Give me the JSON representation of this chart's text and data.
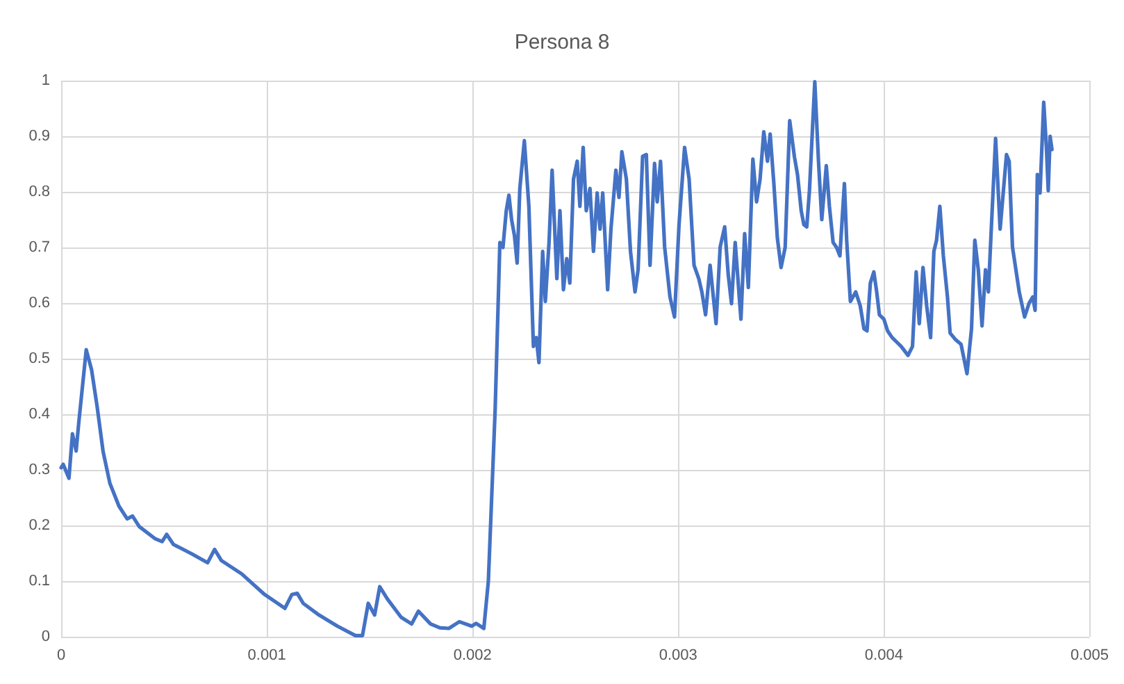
{
  "chart_data": {
    "type": "line",
    "title": "Persona 8",
    "xlim": [
      0,
      0.005
    ],
    "xticks": [
      0,
      0.001,
      0.002,
      0.003,
      0.004,
      0.005
    ],
    "ylim": [
      0,
      1
    ],
    "yticks": [
      0,
      0.1,
      0.2,
      0.3,
      0.4,
      0.5,
      0.6,
      0.7,
      0.8,
      0.9,
      1
    ],
    "grid": true,
    "marker": "none",
    "line_style": "solid",
    "series": [
      {
        "color": "#4472c4",
        "x": [
          0,
          1e-05,
          3.8e-05,
          5.5e-05,
          7.3e-05,
          8.6e-05,
          0.000122,
          0.000148,
          0.000175,
          0.000204,
          0.000237,
          0.000281,
          0.000321,
          0.000347,
          0.00038,
          0.000458,
          0.000491,
          0.000513,
          0.000546,
          0.000635,
          0.000712,
          0.000746,
          0.000779,
          0.000878,
          0.000989,
          0.001088,
          0.001122,
          0.001148,
          0.001177,
          0.001254,
          0.001343,
          0.001431,
          0.001465,
          0.001493,
          0.001524,
          0.001549,
          0.001586,
          0.001653,
          0.001704,
          0.001737,
          0.001796,
          0.001841,
          0.001885,
          0.001936,
          0.001996,
          0.002018,
          0.002055,
          0.002077,
          0.00211,
          0.002133,
          0.002148,
          0.002164,
          0.002177,
          0.00219,
          0.002204,
          0.002217,
          0.00223,
          0.002252,
          0.002274,
          0.002296,
          0.00231,
          0.002323,
          0.002341,
          0.002354,
          0.002372,
          0.002387,
          0.00241,
          0.002425,
          0.002442,
          0.002458,
          0.002473,
          0.002491,
          0.002509,
          0.002522,
          0.002538,
          0.002553,
          0.002571,
          0.002588,
          0.002606,
          0.00262,
          0.002633,
          0.002657,
          0.002673,
          0.002697,
          0.002712,
          0.002726,
          0.002748,
          0.002768,
          0.00279,
          0.002805,
          0.002827,
          0.002845,
          0.002863,
          0.002885,
          0.002898,
          0.002914,
          0.002934,
          0.00296,
          0.002982,
          0.003004,
          0.003031,
          0.003053,
          0.003077,
          0.0031,
          0.003115,
          0.003133,
          0.003155,
          0.003184,
          0.003204,
          0.003226,
          0.003243,
          0.003259,
          0.003277,
          0.003305,
          0.003323,
          0.003341,
          0.003363,
          0.003381,
          0.003398,
          0.003416,
          0.003434,
          0.003447,
          0.003465,
          0.003482,
          0.0035,
          0.00352,
          0.003542,
          0.003565,
          0.00358,
          0.003598,
          0.003611,
          0.003625,
          0.003638,
          0.003664,
          0.003682,
          0.003698,
          0.00372,
          0.003735,
          0.003753,
          0.00377,
          0.003786,
          0.003808,
          0.003819,
          0.003837,
          0.003863,
          0.003885,
          0.003903,
          0.003918,
          0.003934,
          0.003951,
          0.003965,
          0.003978,
          0.004,
          0.004018,
          0.00404,
          0.004062,
          0.004084,
          0.004117,
          0.004139,
          0.004157,
          0.004172,
          0.00419,
          0.004208,
          0.004227,
          0.004243,
          0.004256,
          0.004272,
          0.004289,
          0.004309,
          0.004322,
          0.004349,
          0.004375,
          0.004404,
          0.004426,
          0.004442,
          0.004459,
          0.004477,
          0.004494,
          0.004508,
          0.004521,
          0.004543,
          0.004565,
          0.004596,
          0.004609,
          0.004625,
          0.004658,
          0.004684,
          0.004706,
          0.004724,
          0.004735,
          0.004746,
          0.004759,
          0.004777,
          0.00479,
          0.004799,
          0.004808,
          0.004817
        ],
        "values": [
          0.304,
          0.31,
          0.285,
          0.365,
          0.334,
          0.386,
          0.516,
          0.48,
          0.414,
          0.333,
          0.276,
          0.235,
          0.212,
          0.217,
          0.198,
          0.176,
          0.171,
          0.184,
          0.166,
          0.149,
          0.133,
          0.157,
          0.137,
          0.113,
          0.076,
          0.051,
          0.076,
          0.078,
          0.06,
          0.039,
          0.019,
          0.002,
          0.002,
          0.06,
          0.039,
          0.09,
          0.068,
          0.035,
          0.023,
          0.046,
          0.023,
          0.016,
          0.015,
          0.027,
          0.019,
          0.024,
          0.015,
          0.1,
          0.408,
          0.709,
          0.7,
          0.766,
          0.794,
          0.75,
          0.721,
          0.672,
          0.806,
          0.892,
          0.774,
          0.522,
          0.538,
          0.493,
          0.693,
          0.603,
          0.709,
          0.839,
          0.644,
          0.766,
          0.624,
          0.68,
          0.636,
          0.823,
          0.855,
          0.774,
          0.88,
          0.766,
          0.806,
          0.693,
          0.798,
          0.733,
          0.798,
          0.624,
          0.733,
          0.839,
          0.79,
          0.872,
          0.823,
          0.693,
          0.62,
          0.66,
          0.864,
          0.867,
          0.668,
          0.851,
          0.782,
          0.855,
          0.701,
          0.611,
          0.575,
          0.741,
          0.88,
          0.823,
          0.668,
          0.644,
          0.62,
          0.579,
          0.668,
          0.563,
          0.701,
          0.737,
          0.652,
          0.599,
          0.709,
          0.571,
          0.725,
          0.628,
          0.859,
          0.782,
          0.823,
          0.908,
          0.855,
          0.904,
          0.815,
          0.717,
          0.664,
          0.7,
          0.928,
          0.863,
          0.831,
          0.766,
          0.741,
          0.737,
          0.802,
          0.998,
          0.855,
          0.75,
          0.847,
          0.774,
          0.709,
          0.7,
          0.685,
          0.815,
          0.713,
          0.603,
          0.62,
          0.595,
          0.554,
          0.55,
          0.636,
          0.656,
          0.62,
          0.579,
          0.571,
          0.55,
          0.538,
          0.53,
          0.522,
          0.506,
          0.522,
          0.656,
          0.563,
          0.664,
          0.595,
          0.538,
          0.693,
          0.713,
          0.774,
          0.685,
          0.611,
          0.546,
          0.534,
          0.526,
          0.473,
          0.554,
          0.713,
          0.66,
          0.559,
          0.66,
          0.62,
          0.725,
          0.896,
          0.733,
          0.867,
          0.855,
          0.701,
          0.62,
          0.575,
          0.6,
          0.611,
          0.587,
          0.831,
          0.798,
          0.961,
          0.88,
          0.802,
          0.9,
          0.876
        ]
      }
    ]
  }
}
